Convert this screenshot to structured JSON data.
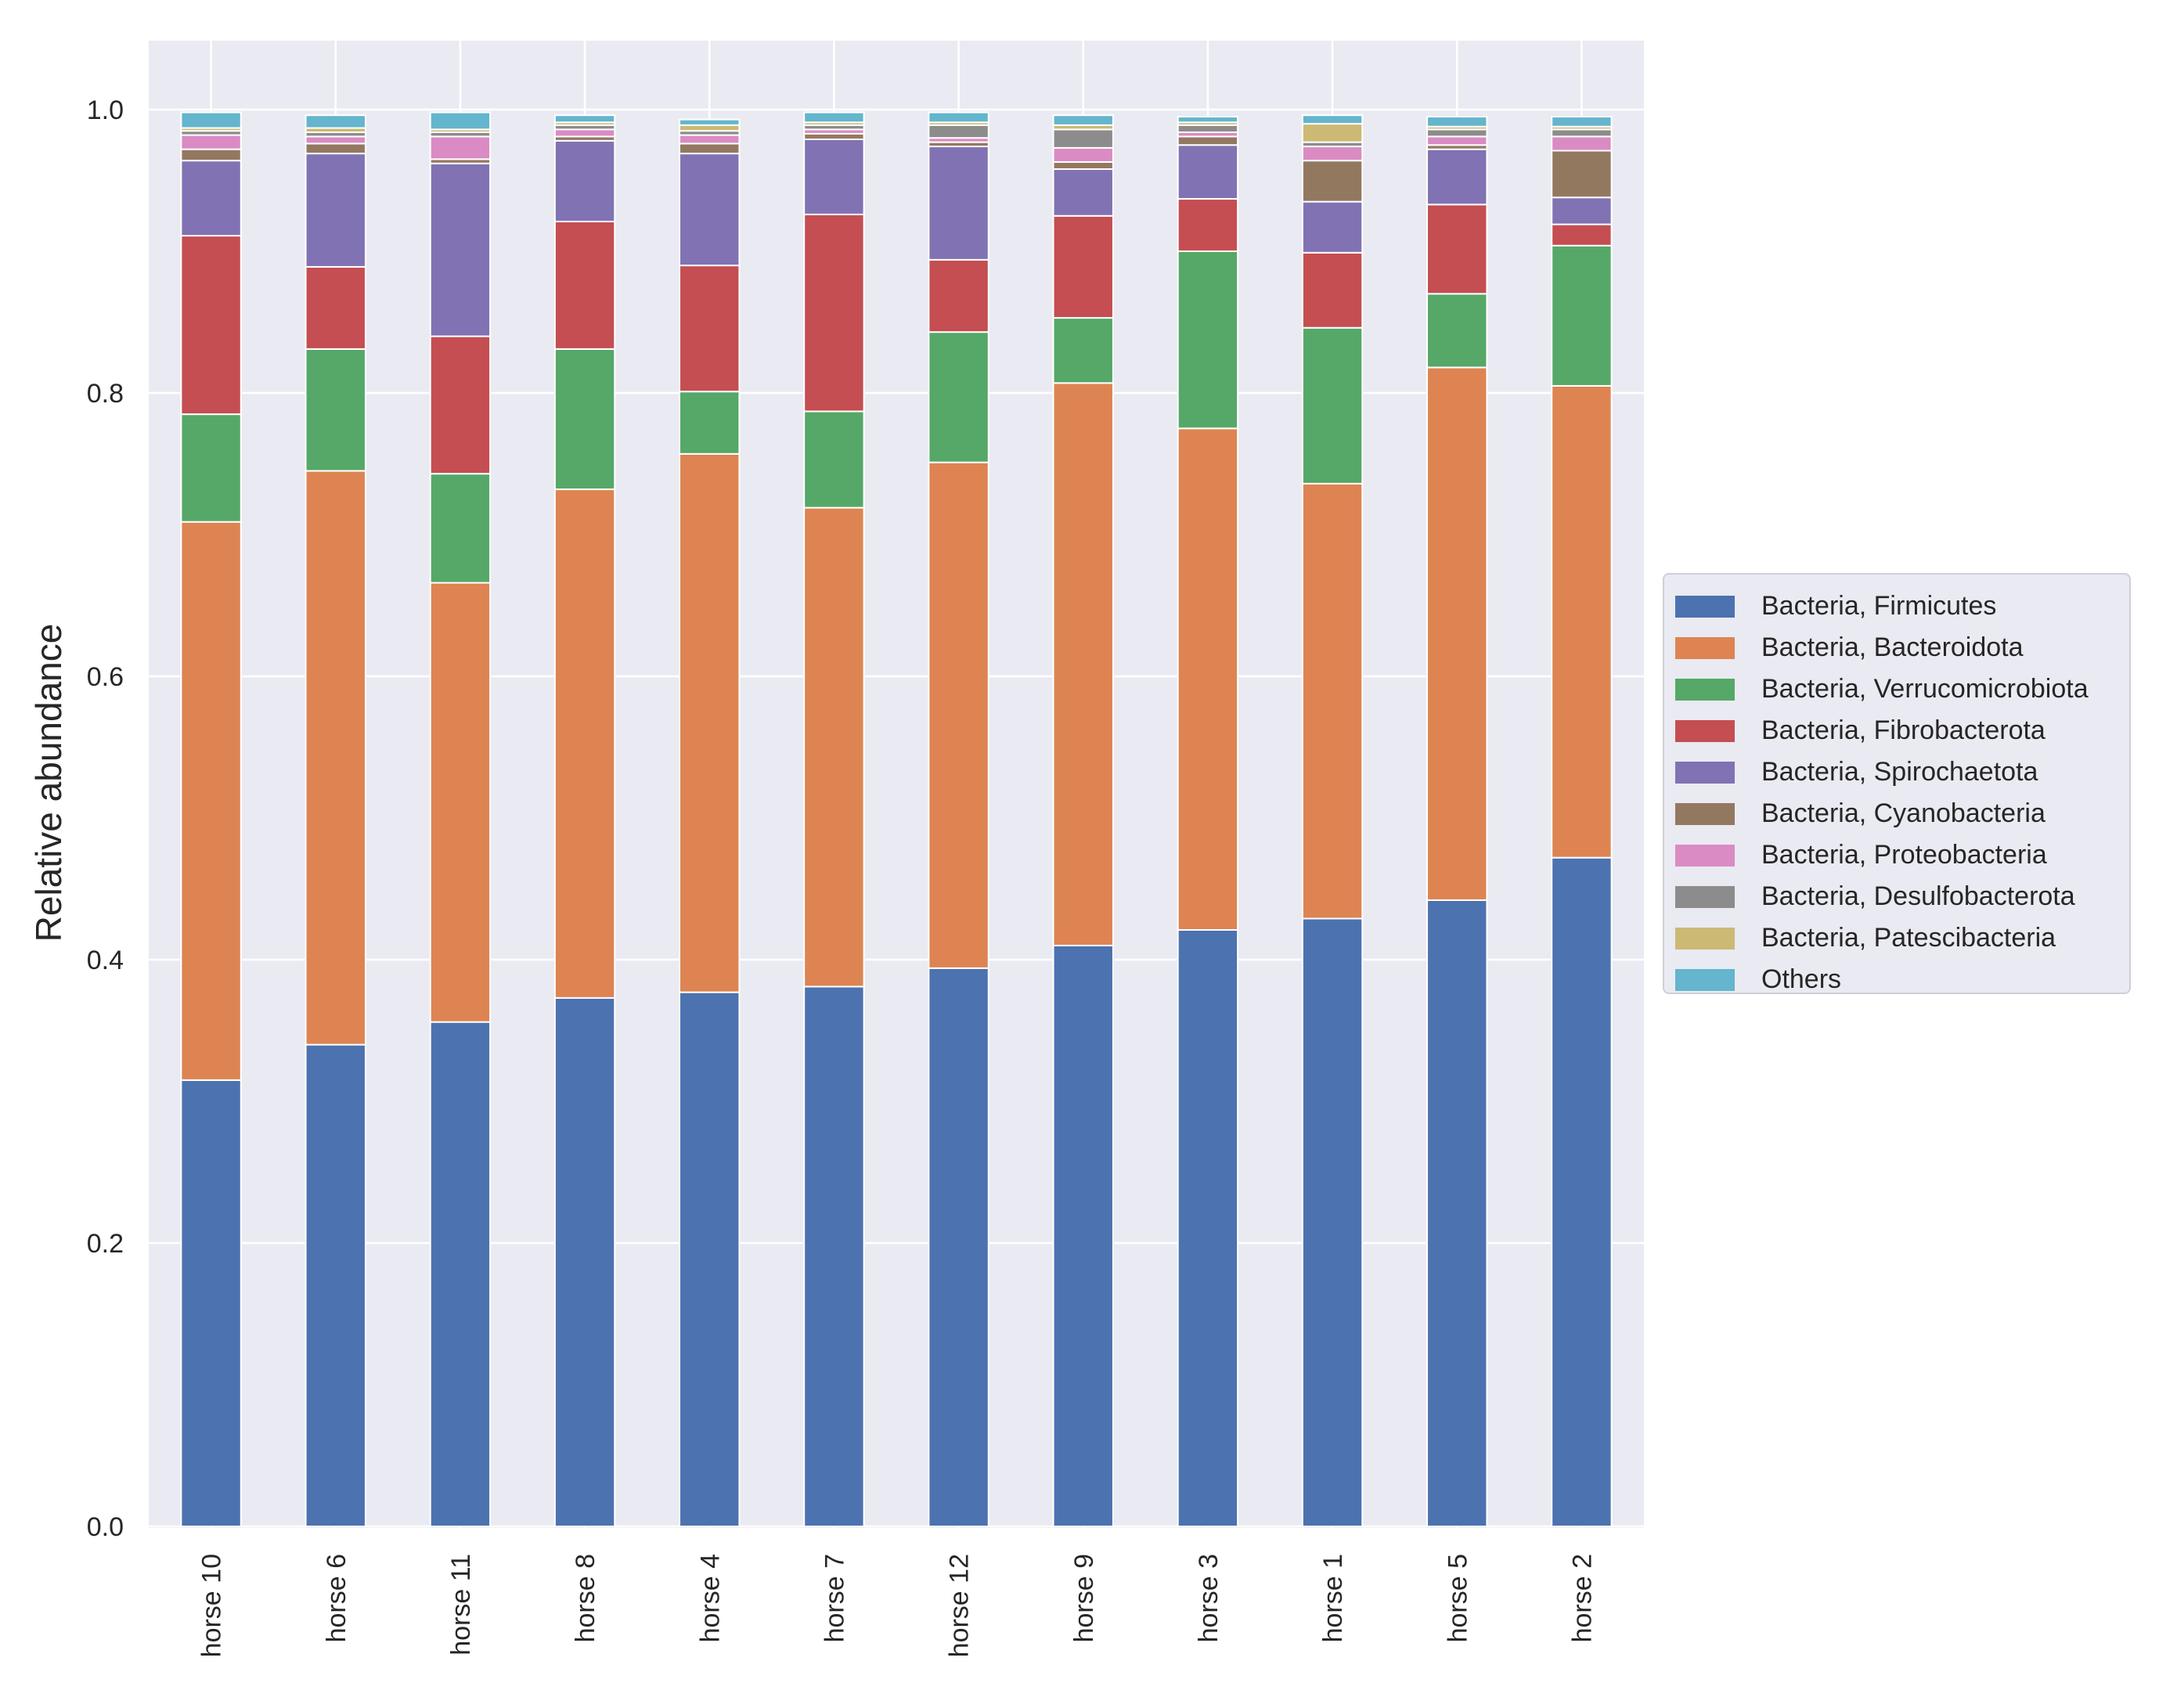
{
  "chart_data": {
    "type": "bar",
    "stacked": true,
    "title": "",
    "xlabel": "",
    "ylabel": "Relative abundance",
    "ylim": [
      0,
      1.05
    ],
    "yticks": [
      "0.0",
      "0.2",
      "0.4",
      "0.6",
      "0.8",
      "1.0"
    ],
    "categories": [
      "horse 10",
      "horse 6",
      "horse 11",
      "horse 8",
      "horse 4",
      "horse 7",
      "horse 12",
      "horse 9",
      "horse 3",
      "horse 1",
      "horse 5",
      "horse 2"
    ],
    "legend_position": "center-right",
    "series": [
      {
        "name": "Bacteria, Firmicutes",
        "color": "#4c72b0",
        "values": [
          0.315,
          0.34,
          0.356,
          0.373,
          0.377,
          0.381,
          0.394,
          0.41,
          0.421,
          0.429,
          0.442,
          0.472
        ]
      },
      {
        "name": "Bacteria, Bacteroidota",
        "color": "#dd8452",
        "values": [
          0.394,
          0.405,
          0.31,
          0.359,
          0.38,
          0.338,
          0.357,
          0.397,
          0.354,
          0.307,
          0.376,
          0.333
        ]
      },
      {
        "name": "Bacteria, Verrucomicrobiota",
        "color": "#55a868",
        "values": [
          0.076,
          0.086,
          0.077,
          0.099,
          0.044,
          0.068,
          0.092,
          0.046,
          0.125,
          0.11,
          0.052,
          0.099
        ]
      },
      {
        "name": "Bacteria, Fibrobacterota",
        "color": "#c44e52",
        "values": [
          0.126,
          0.058,
          0.097,
          0.09,
          0.089,
          0.139,
          0.051,
          0.072,
          0.037,
          0.053,
          0.063,
          0.015
        ]
      },
      {
        "name": "Bacteria, Spirochaetota",
        "color": "#8172b3",
        "values": [
          0.053,
          0.08,
          0.122,
          0.057,
          0.079,
          0.053,
          0.08,
          0.033,
          0.038,
          0.036,
          0.039,
          0.019
        ]
      },
      {
        "name": "Bacteria, Cyanobacteria",
        "color": "#937860",
        "values": [
          0.008,
          0.007,
          0.003,
          0.003,
          0.007,
          0.004,
          0.003,
          0.005,
          0.006,
          0.029,
          0.003,
          0.033
        ]
      },
      {
        "name": "Bacteria, Proteobacteria",
        "color": "#da8bc3",
        "values": [
          0.01,
          0.005,
          0.016,
          0.005,
          0.006,
          0.003,
          0.003,
          0.01,
          0.003,
          0.01,
          0.006,
          0.01
        ]
      },
      {
        "name": "Bacteria, Desulfobacterota",
        "color": "#8c8c8c",
        "values": [
          0.003,
          0.003,
          0.003,
          0.003,
          0.003,
          0.003,
          0.009,
          0.013,
          0.005,
          0.003,
          0.005,
          0.005
        ]
      },
      {
        "name": "Bacteria, Patescibacteria",
        "color": "#ccb974",
        "values": [
          0.002,
          0.003,
          0.002,
          0.002,
          0.004,
          0.002,
          0.002,
          0.003,
          0.002,
          0.013,
          0.002,
          0.002
        ]
      },
      {
        "name": "Others",
        "color": "#64b5cd",
        "values": [
          0.011,
          0.009,
          0.012,
          0.005,
          0.004,
          0.007,
          0.007,
          0.007,
          0.004,
          0.006,
          0.007,
          0.007
        ]
      }
    ]
  }
}
